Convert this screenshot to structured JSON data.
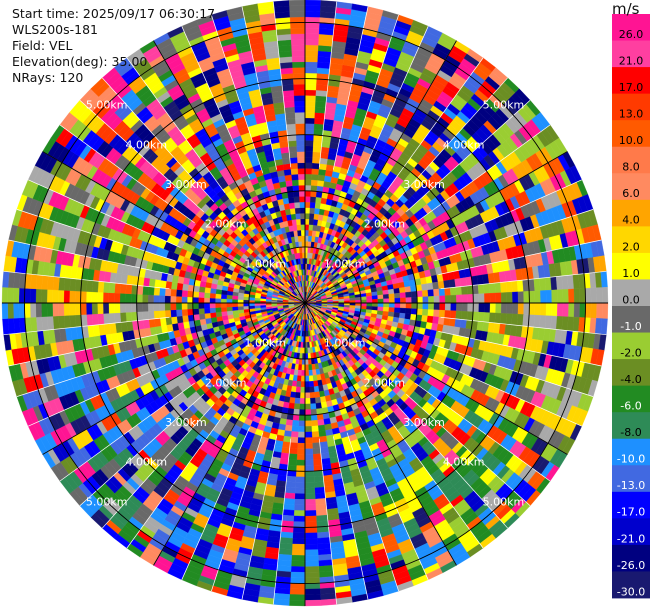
{
  "header": {
    "start_time": "Start time: 2025/09/17 06:30:17",
    "instrument": "WLS200s-181",
    "field": "Field: VEL",
    "elevation": "Elevation(deg): 35.00",
    "nrays": "NRays: 120"
  },
  "colorbar": {
    "unit": "m/s",
    "ticks": [
      "26.0",
      "21.0",
      "17.0",
      "13.0",
      "10.0",
      "8.0",
      "6.0",
      "4.0",
      "2.0",
      "1.0",
      "0.0",
      "-1.0",
      "-2.0",
      "-4.0",
      "-6.0",
      "-8.0",
      "-10.0",
      "-13.0",
      "-17.0",
      "-21.0",
      "-26.0",
      "-30.0"
    ],
    "colors": [
      "#ff1493",
      "#ff3fa0",
      "#ff0000",
      "#ff3a00",
      "#ff5a00",
      "#ff7a4a",
      "#ff8a60",
      "#ffa500",
      "#ffd700",
      "#ffff00",
      "#a9a9a9",
      "#696969",
      "#9acd32",
      "#6b8e23",
      "#228b22",
      "#2e8b57",
      "#1e90ff",
      "#4169e1",
      "#0000ff",
      "#0000cd",
      "#000080",
      "#191970"
    ]
  },
  "chart_data": {
    "type": "radar-ppi",
    "field": "VEL",
    "units": "m/s",
    "elevation_deg": 35.0,
    "n_rays": 120,
    "range_rings_km": [
      1,
      2,
      3,
      4,
      5
    ],
    "range_ring_labels": [
      "1.00km",
      "2.00km",
      "3.00km",
      "4.00km",
      "5.00km"
    ],
    "max_range_km": 5.4,
    "n_gates": 54,
    "value_range": [
      -30.0,
      26.0
    ],
    "pattern": "noisy velocities near center; banded sectors at outer ranges: yellow/green to the west, gray/green/blue to the southwest, blue/green to the south, yellow/gray/green to the east"
  }
}
